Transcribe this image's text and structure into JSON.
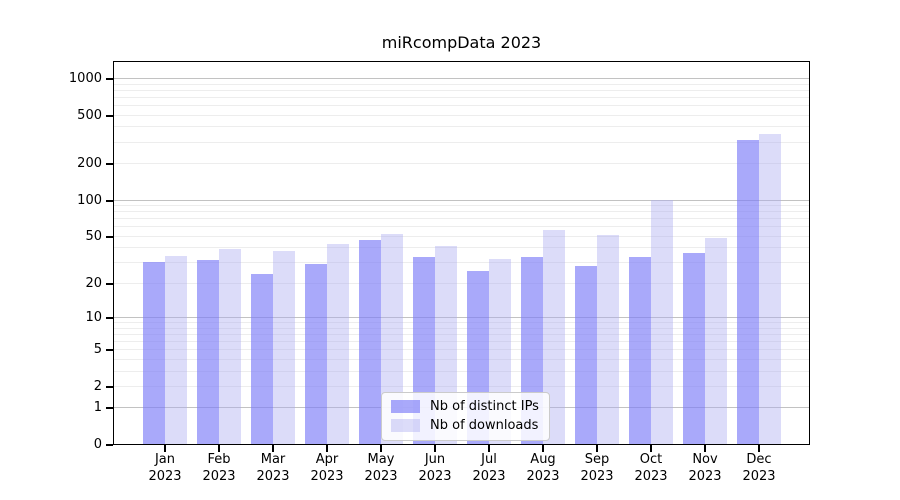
{
  "title": "miRcompData 2023",
  "chart_data": {
    "type": "bar",
    "title": "miRcompData 2023",
    "xlabel": "",
    "ylabel": "",
    "y_scale": "log1p",
    "ylim": [
      0,
      1400
    ],
    "grid": true,
    "legend_position": "inside-bottom-center",
    "y_ticks": [
      0,
      1,
      2,
      5,
      10,
      20,
      50,
      100,
      200,
      500,
      1000
    ],
    "categories": [
      "Jan 2023",
      "Feb 2023",
      "Mar 2023",
      "Apr 2023",
      "May 2023",
      "Jun 2023",
      "Jul 2023",
      "Aug 2023",
      "Sep 2023",
      "Oct 2023",
      "Nov 2023",
      "Dec 2023"
    ],
    "series": [
      {
        "name": "Nb of distinct IPs",
        "color": "#a9a9f9",
        "fill_rgba": "rgba(125,125,248,0.66)",
        "values": [
          30,
          31,
          24,
          29,
          46,
          33,
          25,
          33,
          28,
          33,
          36,
          310
        ]
      },
      {
        "name": "Nb of downloads",
        "color": "#dcdcf9",
        "fill_rgba": "rgba(172,172,241,0.42)",
        "values": [
          34,
          39,
          37,
          43,
          52,
          41,
          32,
          56,
          51,
          100,
          48,
          345
        ]
      }
    ]
  },
  "colors": {
    "background": "#ffffff",
    "spine": "#000000",
    "grid_major": "#c2c2c2",
    "grid_minor": "#ededed"
  }
}
